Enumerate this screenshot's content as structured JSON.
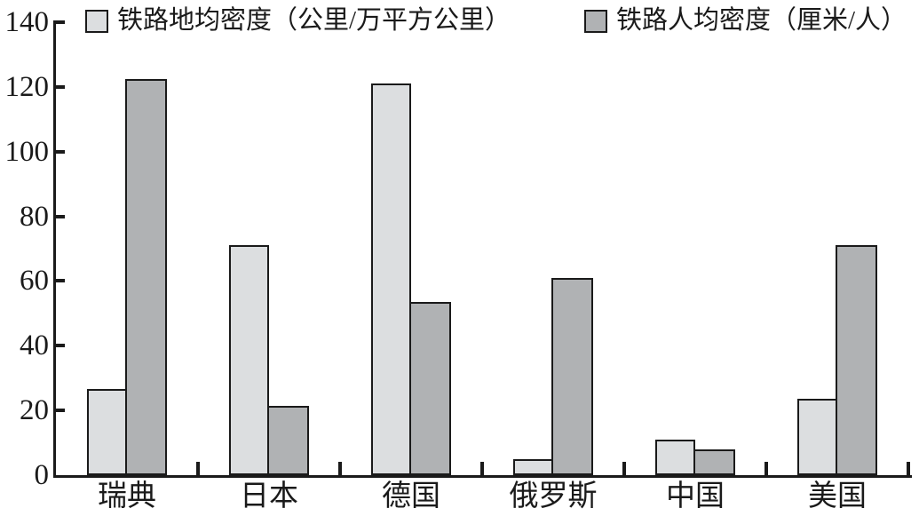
{
  "chart_data": {
    "type": "bar",
    "title": "",
    "xlabel": "",
    "ylabel": "",
    "categories": [
      "瑞典",
      "日本",
      "德国",
      "俄罗斯",
      "中国",
      "美国"
    ],
    "series": [
      {
        "name": "铁路地均密度（公里/万平方公里）",
        "color": "#dcdee0",
        "values": [
          26.5,
          71,
          121,
          5,
          11,
          23.5
        ]
      },
      {
        "name": "铁路人均密度（厘米/人）",
        "color": "#b0b2b4",
        "values": [
          122.5,
          21.5,
          53.5,
          61,
          8,
          71
        ]
      }
    ],
    "ylim": [
      0,
      140
    ],
    "yticks": [
      0,
      20,
      40,
      60,
      80,
      100,
      120,
      140
    ],
    "legend_position": "top",
    "grid": false,
    "axis_color": "#1a1a1a",
    "bar_border_color": "#1a1a1a",
    "text_color": "#1a1a1a"
  }
}
